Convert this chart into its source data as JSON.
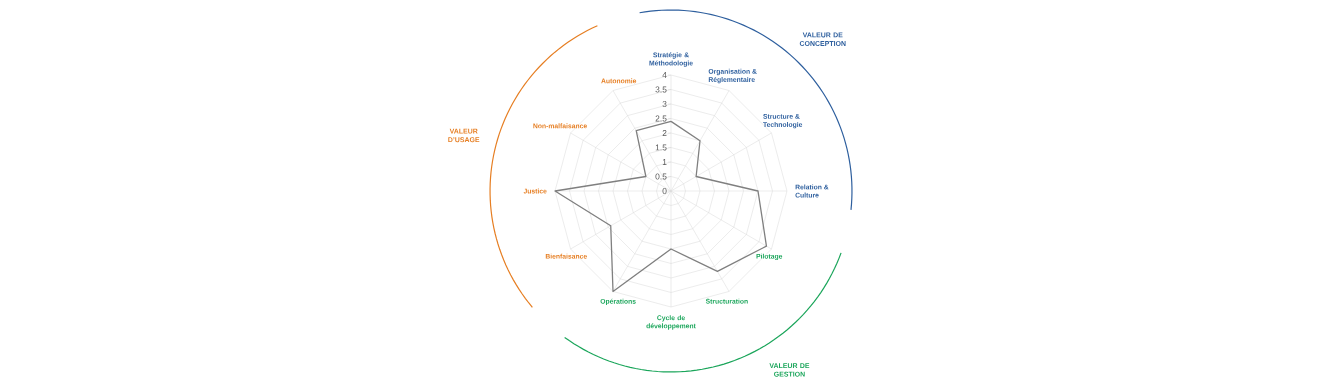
{
  "chart_data": {
    "type": "radar",
    "categories": [
      "Stratégie & Méthodologie",
      "Organisation & Réglementaire",
      "Structure & Technologie",
      "Relation & Culture",
      "Pilotage",
      "Structuration",
      "Cycle de développement",
      "Opérations",
      "Bienfaisance",
      "Justice",
      "Non-malfaisance",
      "Autonomie"
    ],
    "series": [
      {
        "color": "#7f7f7f",
        "values": [
          2.4,
          2.0,
          1.0,
          3.0,
          3.8,
          3.2,
          2.0,
          4.0,
          2.4,
          4.0,
          1.0,
          2.4
        ]
      }
    ],
    "ylim": [
      0,
      4
    ],
    "yticks": [
      0,
      0.5,
      1,
      1.5,
      2,
      2.5,
      3,
      3.5,
      4
    ],
    "grid": true,
    "annotations": [
      "VALEUR DE CONCEPTION",
      "VALEUR DE GESTION",
      "VALEUR D’USAGE"
    ]
  }
}
